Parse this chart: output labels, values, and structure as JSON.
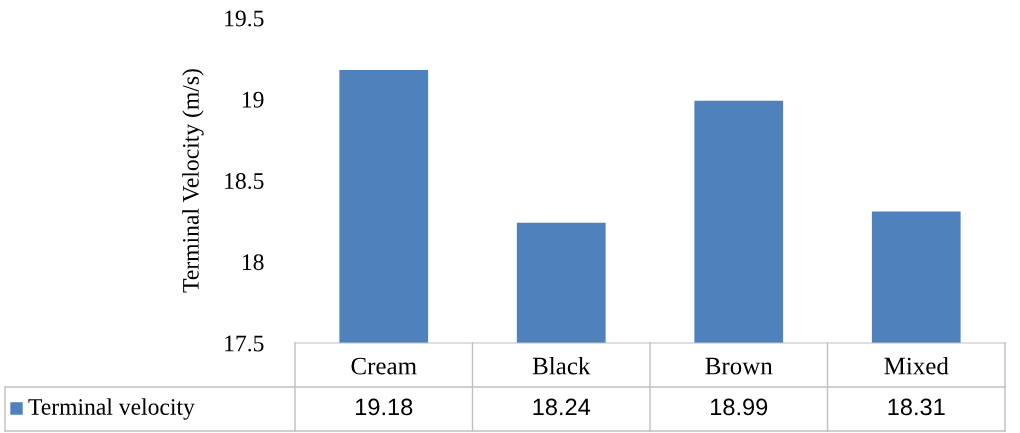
{
  "chart_data": {
    "type": "bar",
    "ylabel": "Terminal Velocity (m/s)",
    "categories": [
      "Cream",
      "Black",
      "Brown",
      "Mixed"
    ],
    "series": [
      {
        "name": "Terminal velocity",
        "color": "#4f81bd",
        "values": [
          19.18,
          18.24,
          18.99,
          18.31
        ]
      }
    ],
    "ylim": [
      17.5,
      19.5
    ],
    "yticks": [
      17.5,
      18,
      18.5,
      19,
      19.5
    ],
    "grid": false,
    "legend": "bottom",
    "data_labels": true
  }
}
